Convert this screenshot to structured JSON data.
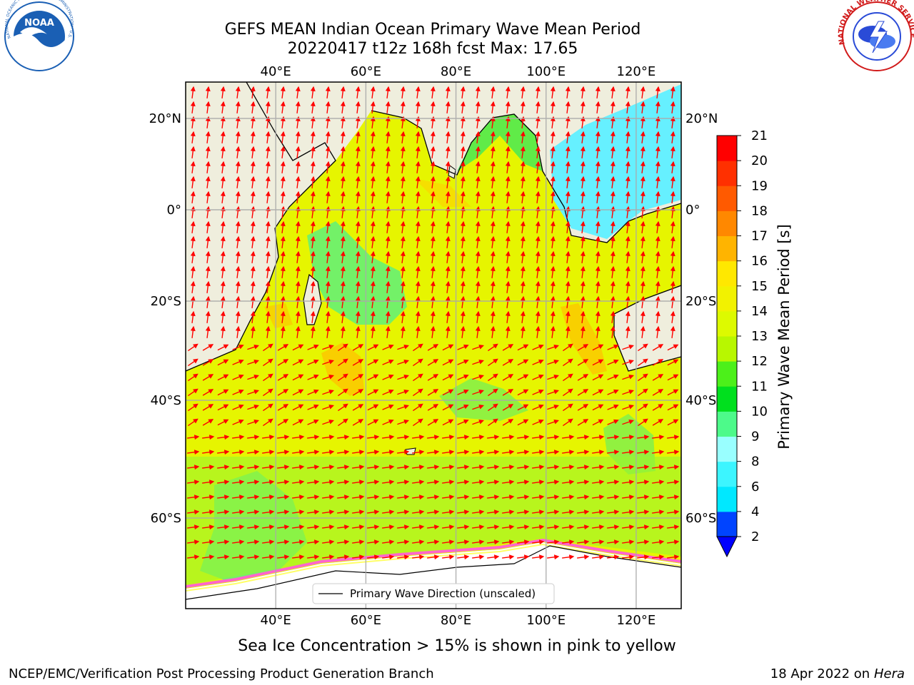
{
  "header": {
    "title_line1": "GEFS MEAN Indian Ocean Primary Wave Mean Period",
    "title_line2": "20220417 t12z 168h fcst   Max: 17.65"
  },
  "logos": {
    "left": {
      "text": "NOAA",
      "ring_text": "NATIONAL OCEANIC AND ATMOSPHERIC ADMINISTRATION · U.S. DEPARTMENT OF COMMERCE",
      "color": "#1a5fb4"
    },
    "right": {
      "ring_text": "NATIONAL WEATHER SERVICE",
      "color": "#d11a1a"
    }
  },
  "map": {
    "lon_ticks": [
      "40°E",
      "60°E",
      "80°E",
      "100°E",
      "120°E"
    ],
    "lon_values": [
      40,
      60,
      80,
      100,
      120
    ],
    "lat_ticks": [
      "20°N",
      "0°",
      "20°S",
      "40°S",
      "60°S"
    ],
    "lat_values": [
      20,
      0,
      -20,
      -40,
      -60
    ],
    "lon_range": [
      20,
      130
    ],
    "land_color": "#efeedd",
    "ice_color": "#ffffff",
    "ice_edge_colors": [
      "#ff66cc",
      "#ffff66"
    ],
    "arrow_color": "#ff0000",
    "legend_label": "Primary Wave Direction (unscaled)"
  },
  "colorbar": {
    "label": "Primary Wave Mean Period [s]",
    "ticks": [
      "2",
      "4",
      "6",
      "8",
      "9",
      "10",
      "11",
      "12",
      "13",
      "14",
      "15",
      "16",
      "17",
      "18",
      "19",
      "20",
      "21"
    ],
    "colors": [
      "#0044ff",
      "#00e8ff",
      "#3cf5ff",
      "#99ffff",
      "#4dfa8a",
      "#00e01e",
      "#4cf01a",
      "#b8f700",
      "#ddfa00",
      "#f2f200",
      "#ffe800",
      "#ffb400",
      "#ff8800",
      "#ff5a00",
      "#ff3000",
      "#ff0000"
    ],
    "under_color": "#0000ff"
  },
  "footer": {
    "sea_ice_note": "Sea Ice Concentration > 15% is shown in pink to yellow",
    "left_credit": "NCEP/EMC/Verification Post Processing Product Generation Branch",
    "right_credit_prefix": "18 Apr 2022 on ",
    "right_credit_host": "Hera"
  }
}
